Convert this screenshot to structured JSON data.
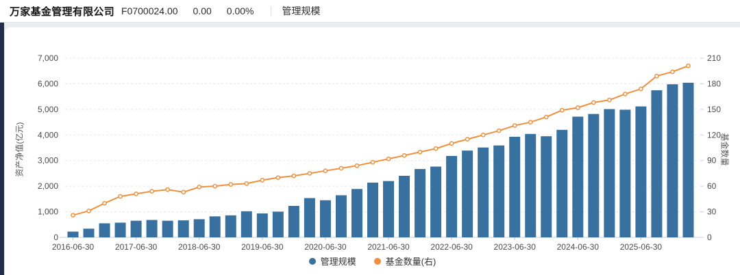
{
  "header": {
    "company": "万家基金管理有限公司",
    "code": "F0700024.00",
    "nav": "0.00",
    "change_pct": "0.00%",
    "tab": "管理规模"
  },
  "chart_data": {
    "type": "bar",
    "x_tick_labels": [
      "2016-06-30",
      "2017-06-30",
      "2018-06-30",
      "2019-06-30",
      "2020-06-30",
      "2021-06-30",
      "2022-06-30",
      "2023-06-30",
      "2024-06-30",
      "2025-06-30"
    ],
    "x_tick_every": 4,
    "series": [
      {
        "name": "管理规模",
        "type": "bar",
        "axis": "left",
        "color": "#38719f",
        "values": [
          225,
          340,
          550,
          575,
          650,
          680,
          650,
          665,
          710,
          820,
          860,
          1020,
          935,
          1005,
          1230,
          1535,
          1450,
          1645,
          1890,
          2140,
          2200,
          2405,
          2670,
          2765,
          3180,
          3390,
          3510,
          3590,
          3930,
          4040,
          3950,
          4200,
          4715,
          4820,
          5010,
          4985,
          5115,
          5745,
          5980,
          6040
        ]
      },
      {
        "name": "基金数量(右)",
        "type": "line",
        "axis": "right",
        "color": "#ef903d",
        "values": [
          26,
          31,
          40,
          48,
          51,
          54,
          56,
          53,
          59,
          60,
          62,
          63,
          67,
          70,
          72,
          75,
          78,
          81,
          84,
          88,
          92,
          96,
          100,
          104,
          110,
          115,
          120,
          125,
          131,
          135,
          141,
          149,
          152,
          158,
          161,
          168,
          174,
          189,
          194,
          201
        ]
      }
    ],
    "left_axis": {
      "title": "资产净值(亿元)",
      "min": 0,
      "max": 7000,
      "ticks": [
        "0",
        "1,000",
        "2,000",
        "3,000",
        "4,000",
        "5,000",
        "6,000",
        "7,000"
      ]
    },
    "right_axis": {
      "title": "基金数量",
      "min": 0,
      "max": 210,
      "ticks": [
        "0",
        "30",
        "60",
        "90",
        "120",
        "150",
        "180",
        "210"
      ]
    },
    "legend_position": "bottom",
    "grid": true
  }
}
